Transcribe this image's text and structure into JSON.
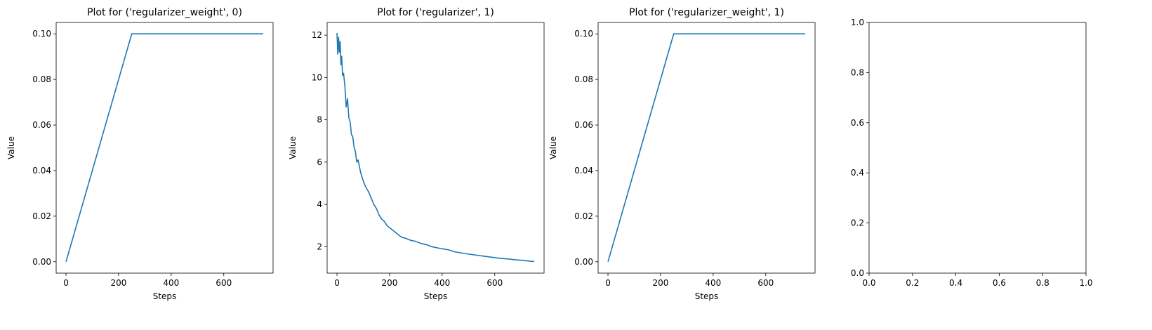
{
  "chart_data": [
    {
      "type": "line",
      "title": "Plot for ('regularizer_weight', 0)",
      "xlabel": "Steps",
      "ylabel": "Value",
      "xlim": [
        -37.5,
        787.5
      ],
      "ylim": [
        -0.005,
        0.105
      ],
      "xticks": [
        0,
        200,
        400,
        600
      ],
      "xtick_labels": [
        "0",
        "200",
        "400",
        "600"
      ],
      "yticks": [
        0.0,
        0.02,
        0.04,
        0.06,
        0.08,
        0.1
      ],
      "ytick_labels": [
        "0.00",
        "0.02",
        "0.04",
        "0.06",
        "0.08",
        "0.10"
      ],
      "series": [
        {
          "color": "#1f77b4",
          "x": [
            0,
            250,
            750
          ],
          "y": [
            0.0,
            0.1,
            0.1
          ]
        }
      ]
    },
    {
      "type": "line",
      "title": "Plot for ('regularizer', 1)",
      "xlabel": "Steps",
      "ylabel": "Value",
      "xlim": [
        -37.5,
        787.5
      ],
      "ylim": [
        0.75,
        12.6
      ],
      "xticks": [
        0,
        200,
        400,
        600
      ],
      "xtick_labels": [
        "0",
        "200",
        "400",
        "600"
      ],
      "yticks": [
        2,
        4,
        6,
        8,
        10,
        12
      ],
      "ytick_labels": [
        "2",
        "4",
        "6",
        "8",
        "10",
        "12"
      ],
      "series": [
        {
          "color": "#1f77b4",
          "x": [
            0,
            3,
            6,
            9,
            12,
            15,
            18,
            21,
            25,
            30,
            35,
            40,
            45,
            50,
            55,
            60,
            65,
            70,
            75,
            80,
            90,
            100,
            110,
            120,
            130,
            140,
            150,
            160,
            170,
            180,
            190,
            200,
            215,
            230,
            245,
            260,
            280,
            300,
            320,
            340,
            360,
            380,
            400,
            425,
            450,
            475,
            500,
            530,
            560,
            590,
            620,
            650,
            680,
            710,
            730,
            750
          ],
          "y": [
            12.1,
            11.1,
            11.9,
            11.2,
            11.7,
            10.6,
            11.0,
            10.1,
            10.2,
            9.6,
            8.6,
            9.0,
            8.1,
            7.9,
            7.3,
            7.2,
            6.7,
            6.5,
            6.0,
            6.1,
            5.5,
            5.1,
            4.8,
            4.6,
            4.3,
            4.0,
            3.8,
            3.5,
            3.3,
            3.2,
            3.0,
            2.9,
            2.75,
            2.6,
            2.45,
            2.4,
            2.3,
            2.25,
            2.15,
            2.1,
            2.0,
            1.95,
            1.9,
            1.85,
            1.75,
            1.7,
            1.65,
            1.6,
            1.55,
            1.5,
            1.45,
            1.42,
            1.38,
            1.35,
            1.32,
            1.3
          ]
        }
      ]
    },
    {
      "type": "line",
      "title": "Plot for ('regularizer_weight', 1)",
      "xlabel": "Steps",
      "ylabel": "Value",
      "xlim": [
        -37.5,
        787.5
      ],
      "ylim": [
        -0.005,
        0.105
      ],
      "xticks": [
        0,
        200,
        400,
        600
      ],
      "xtick_labels": [
        "0",
        "200",
        "400",
        "600"
      ],
      "yticks": [
        0.0,
        0.02,
        0.04,
        0.06,
        0.08,
        0.1
      ],
      "ytick_labels": [
        "0.00",
        "0.02",
        "0.04",
        "0.06",
        "0.08",
        "0.10"
      ],
      "series": [
        {
          "color": "#1f77b4",
          "x": [
            0,
            250,
            750
          ],
          "y": [
            0.0,
            0.1,
            0.1
          ]
        }
      ]
    },
    {
      "type": "line",
      "title": "",
      "xlabel": "",
      "ylabel": "",
      "xlim": [
        0,
        1
      ],
      "ylim": [
        0,
        1
      ],
      "xticks": [
        0.0,
        0.2,
        0.4,
        0.6,
        0.8,
        1.0
      ],
      "xtick_labels": [
        "0.0",
        "0.2",
        "0.4",
        "0.6",
        "0.8",
        "1.0"
      ],
      "yticks": [
        0.0,
        0.2,
        0.4,
        0.6,
        0.8,
        1.0
      ],
      "ytick_labels": [
        "0.0",
        "0.2",
        "0.4",
        "0.6",
        "0.8",
        "1.0"
      ],
      "series": []
    }
  ]
}
